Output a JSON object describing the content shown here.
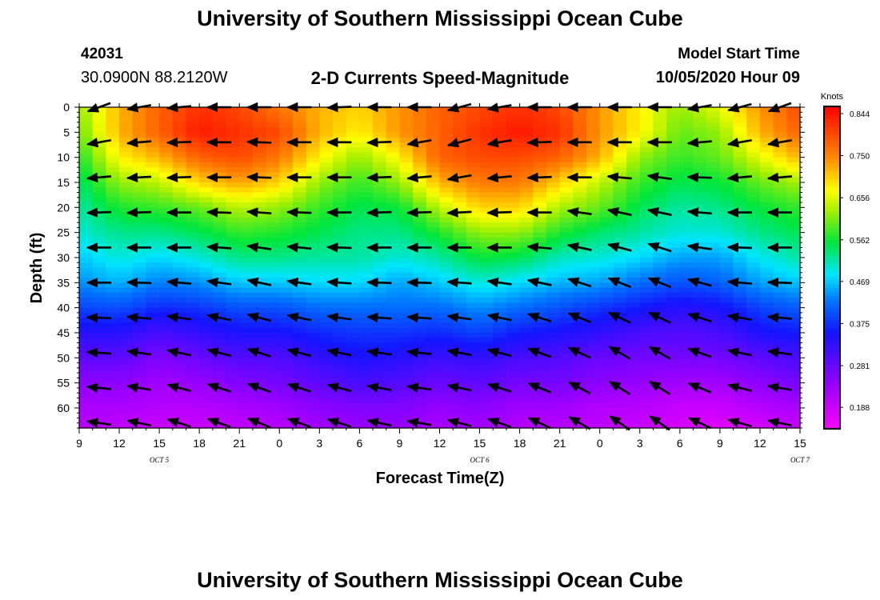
{
  "header": {
    "title": "University of Southern Mississippi Ocean Cube",
    "station_id": "42031",
    "station_coords": "30.0900N 88.2120W",
    "chart_title": "2-D Currents Speed-Magnitude",
    "model_start_label": "Model Start Time",
    "model_start_value": "10/05/2020 Hour 09"
  },
  "footer": {
    "title": "University of Southern Mississippi Ocean Cube"
  },
  "chart_data": {
    "type": "heatmap",
    "title": "2-D Currents Speed-Magnitude",
    "xlabel": "Forecast Time(Z)",
    "ylabel": "Depth (ft)",
    "x_tick_labels": [
      "9",
      "12",
      "15",
      "18",
      "21",
      "0",
      "3",
      "6",
      "9",
      "12",
      "15",
      "18",
      "21",
      "0",
      "3",
      "6",
      "9",
      "12",
      "15"
    ],
    "date_labels": [
      {
        "text": "OCT 5",
        "hour": 15
      },
      {
        "text": "OCT 6",
        "hour": 39
      },
      {
        "text": "OCT 7",
        "hour": 63
      }
    ],
    "x_range_hours": [
      0,
      54
    ],
    "y_ticks": [
      0,
      5,
      10,
      15,
      20,
      25,
      30,
      35,
      40,
      45,
      50,
      55,
      60
    ],
    "y_range": [
      0,
      64
    ],
    "colorbar": {
      "unit": "Knots",
      "range": [
        0.14,
        0.86
      ],
      "ticks": [
        0.844,
        0.75,
        0.656,
        0.562,
        0.469,
        0.375,
        0.281,
        0.188
      ],
      "tick_labels": [
        "0.844",
        "0.750",
        "0.656",
        "0.562",
        "0.469",
        "0.375",
        "0.281",
        "0.188"
      ]
    },
    "times_hours": [
      0,
      3,
      6,
      9,
      12,
      15,
      18,
      21,
      24,
      27,
      30,
      33,
      36,
      39,
      42,
      45,
      48,
      51,
      54
    ],
    "depths_ft": [
      0,
      5,
      10,
      15,
      20,
      25,
      30,
      35,
      40,
      45,
      50,
      55,
      60,
      64
    ],
    "speed_profiles": [
      [
        0.62,
        0.6,
        0.57,
        0.54,
        0.52,
        0.5,
        0.47,
        0.44,
        0.39,
        0.34,
        0.29,
        0.25,
        0.22,
        0.21
      ],
      [
        0.72,
        0.72,
        0.68,
        0.62,
        0.57,
        0.53,
        0.5,
        0.46,
        0.4,
        0.34,
        0.29,
        0.25,
        0.22,
        0.2
      ],
      [
        0.78,
        0.78,
        0.72,
        0.64,
        0.58,
        0.53,
        0.48,
        0.43,
        0.37,
        0.31,
        0.26,
        0.23,
        0.21,
        0.19
      ],
      [
        0.82,
        0.84,
        0.78,
        0.7,
        0.6,
        0.55,
        0.5,
        0.44,
        0.38,
        0.33,
        0.28,
        0.24,
        0.21,
        0.19
      ],
      [
        0.8,
        0.82,
        0.8,
        0.73,
        0.64,
        0.58,
        0.53,
        0.47,
        0.4,
        0.35,
        0.3,
        0.26,
        0.22,
        0.2
      ],
      [
        0.76,
        0.8,
        0.76,
        0.7,
        0.62,
        0.57,
        0.53,
        0.47,
        0.4,
        0.35,
        0.3,
        0.27,
        0.23,
        0.21
      ],
      [
        0.72,
        0.72,
        0.68,
        0.62,
        0.58,
        0.55,
        0.52,
        0.48,
        0.42,
        0.37,
        0.33,
        0.29,
        0.25,
        0.23
      ],
      [
        0.7,
        0.68,
        0.62,
        0.58,
        0.55,
        0.53,
        0.52,
        0.48,
        0.42,
        0.38,
        0.35,
        0.31,
        0.26,
        0.24
      ],
      [
        0.74,
        0.74,
        0.68,
        0.62,
        0.56,
        0.53,
        0.5,
        0.45,
        0.42,
        0.38,
        0.34,
        0.3,
        0.26,
        0.24
      ],
      [
        0.78,
        0.78,
        0.78,
        0.72,
        0.64,
        0.57,
        0.52,
        0.47,
        0.42,
        0.37,
        0.32,
        0.28,
        0.24,
        0.22
      ],
      [
        0.8,
        0.82,
        0.8,
        0.76,
        0.7,
        0.62,
        0.56,
        0.5,
        0.44,
        0.39,
        0.33,
        0.29,
        0.25,
        0.23
      ],
      [
        0.82,
        0.84,
        0.8,
        0.76,
        0.7,
        0.62,
        0.55,
        0.48,
        0.42,
        0.36,
        0.31,
        0.27,
        0.23,
        0.21
      ],
      [
        0.8,
        0.82,
        0.78,
        0.7,
        0.63,
        0.57,
        0.51,
        0.46,
        0.4,
        0.35,
        0.3,
        0.27,
        0.23,
        0.21
      ],
      [
        0.74,
        0.74,
        0.72,
        0.64,
        0.6,
        0.54,
        0.5,
        0.45,
        0.38,
        0.33,
        0.28,
        0.25,
        0.21,
        0.2
      ],
      [
        0.68,
        0.68,
        0.62,
        0.58,
        0.55,
        0.52,
        0.48,
        0.42,
        0.36,
        0.31,
        0.27,
        0.24,
        0.21,
        0.19
      ],
      [
        0.62,
        0.6,
        0.58,
        0.55,
        0.52,
        0.5,
        0.45,
        0.4,
        0.34,
        0.3,
        0.27,
        0.23,
        0.19,
        0.18
      ],
      [
        0.66,
        0.62,
        0.6,
        0.56,
        0.53,
        0.5,
        0.45,
        0.41,
        0.35,
        0.31,
        0.27,
        0.23,
        0.19,
        0.17
      ],
      [
        0.74,
        0.72,
        0.66,
        0.6,
        0.56,
        0.53,
        0.49,
        0.45,
        0.39,
        0.35,
        0.29,
        0.25,
        0.21,
        0.18
      ],
      [
        0.8,
        0.78,
        0.72,
        0.63,
        0.58,
        0.55,
        0.52,
        0.47,
        0.41,
        0.36,
        0.31,
        0.27,
        0.22,
        0.2
      ]
    ],
    "vector_times_hours": [
      1.5,
      4.5,
      7.5,
      10.5,
      13.5,
      16.5,
      19.5,
      22.5,
      25.5,
      28.5,
      31.5,
      34.5,
      37.5,
      40.5,
      43.5,
      46.5,
      49.5,
      52.5
    ],
    "vector_depths_ft": [
      0,
      7,
      14,
      21,
      28,
      35,
      42,
      49,
      56,
      63
    ],
    "vector_directions_deg": [
      [
        200,
        190,
        185,
        180,
        180,
        180,
        182,
        180,
        180,
        195,
        190,
        180,
        180,
        180,
        180,
        190,
        195,
        200
      ],
      [
        190,
        185,
        182,
        180,
        178,
        180,
        180,
        182,
        190,
        195,
        190,
        182,
        180,
        180,
        180,
        185,
        190,
        190
      ],
      [
        185,
        183,
        182,
        180,
        178,
        180,
        180,
        182,
        185,
        190,
        185,
        182,
        180,
        175,
        172,
        178,
        185,
        185
      ],
      [
        182,
        182,
        180,
        178,
        176,
        178,
        180,
        182,
        182,
        183,
        182,
        180,
        172,
        168,
        168,
        175,
        180,
        180
      ],
      [
        180,
        180,
        180,
        176,
        172,
        175,
        178,
        180,
        180,
        180,
        180,
        175,
        168,
        165,
        162,
        172,
        178,
        180
      ],
      [
        180,
        178,
        175,
        172,
        168,
        172,
        176,
        178,
        178,
        176,
        172,
        168,
        162,
        158,
        158,
        165,
        175,
        178
      ],
      [
        178,
        175,
        172,
        168,
        165,
        168,
        172,
        176,
        176,
        172,
        168,
        162,
        158,
        155,
        155,
        162,
        170,
        175
      ],
      [
        176,
        172,
        168,
        165,
        162,
        165,
        168,
        172,
        174,
        170,
        165,
        160,
        155,
        150,
        150,
        160,
        168,
        172
      ],
      [
        174,
        170,
        165,
        162,
        160,
        162,
        165,
        170,
        172,
        168,
        162,
        158,
        152,
        148,
        148,
        158,
        166,
        170
      ],
      [
        172,
        168,
        162,
        160,
        158,
        160,
        162,
        168,
        170,
        165,
        160,
        155,
        150,
        145,
        145,
        155,
        164,
        168
      ]
    ]
  }
}
